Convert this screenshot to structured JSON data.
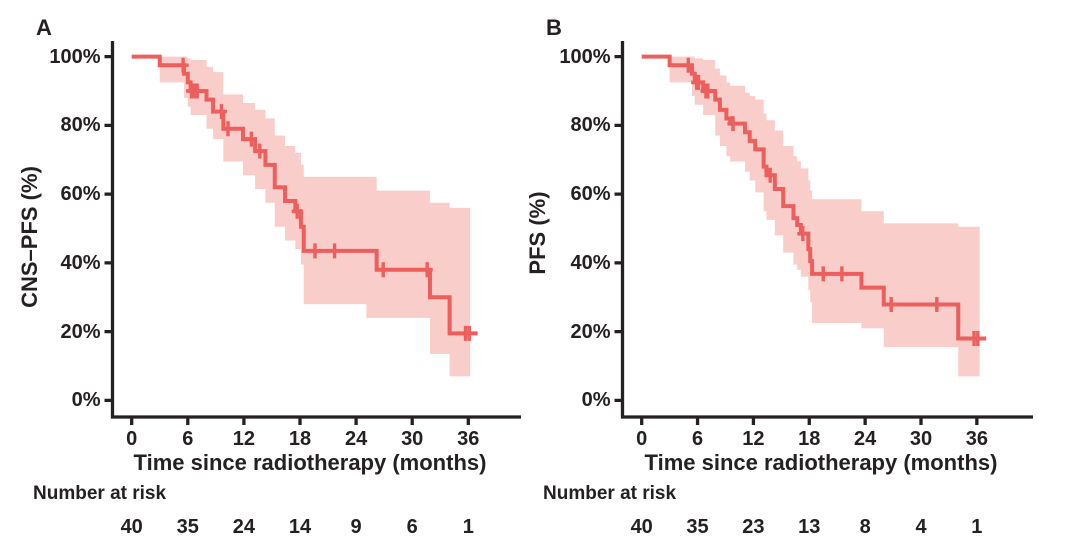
{
  "colors": {
    "curve": "#ec5f5d",
    "band": "#f9cdca",
    "axis": "#252122",
    "text": "#252122",
    "background": "#ffffff"
  },
  "chart_data": [
    {
      "type": "line",
      "subtype": "kaplan-meier-step",
      "panel_label": "A",
      "ylabel": "CNS–PFS (%)",
      "xlabel": "Time since radiotherapy (months)",
      "xlim": [
        0,
        42
      ],
      "ylim": [
        0,
        100
      ],
      "grid": false,
      "legend": "none",
      "xtick_values": [
        0,
        6,
        12,
        18,
        24,
        30,
        36
      ],
      "xtick_labels": [
        "0",
        "6",
        "12",
        "18",
        "24",
        "30",
        "36"
      ],
      "ytick_values": [
        100,
        80,
        60,
        40,
        20,
        0
      ],
      "ytick_labels": [
        "100%",
        "80%",
        "60%",
        "40%",
        "20%",
        "0%"
      ],
      "steps": [
        [
          0,
          100
        ],
        [
          3,
          97.5
        ],
        [
          5.6,
          95
        ],
        [
          6,
          92.5
        ],
        [
          6.3,
          90
        ],
        [
          8,
          87.5
        ],
        [
          8.7,
          84
        ],
        [
          9.8,
          79
        ],
        [
          11.9,
          76
        ],
        [
          13.2,
          72.5
        ],
        [
          14.3,
          68.5
        ],
        [
          15.3,
          62
        ],
        [
          16.4,
          58
        ],
        [
          17.5,
          55
        ],
        [
          18.1,
          50.5
        ],
        [
          18.4,
          43.5
        ],
        [
          26.2,
          38
        ],
        [
          31.9,
          30
        ],
        [
          34,
          19.5
        ]
      ],
      "end_time": 37,
      "censors": [
        [
          5.5,
          97.5
        ],
        [
          6.4,
          90
        ],
        [
          6.6,
          90
        ],
        [
          6.8,
          90
        ],
        [
          7,
          90
        ],
        [
          9.6,
          84
        ],
        [
          10.3,
          79
        ],
        [
          12.8,
          76
        ],
        [
          13.7,
          72.5
        ],
        [
          17.7,
          55
        ],
        [
          19.6,
          43.5
        ],
        [
          21.7,
          43.5
        ],
        [
          26.9,
          38
        ],
        [
          31.6,
          38
        ],
        [
          35.7,
          19.5
        ],
        [
          36.1,
          19.5
        ]
      ],
      "ci": [
        [
          3,
          100,
          92.5
        ],
        [
          5.6,
          100,
          88
        ],
        [
          6,
          99.5,
          85.5
        ],
        [
          6.3,
          99,
          83
        ],
        [
          8,
          97,
          79
        ],
        [
          8.7,
          95.5,
          76
        ],
        [
          9.8,
          89,
          69.5
        ],
        [
          11.9,
          86.5,
          65.5
        ],
        [
          13.2,
          84.5,
          61.5
        ],
        [
          14.3,
          82,
          57.5
        ],
        [
          15.3,
          77,
          50.5
        ],
        [
          16.4,
          74,
          46.5
        ],
        [
          17.5,
          72,
          44
        ],
        [
          18.1,
          68.5,
          39.5
        ],
        [
          18.4,
          65,
          28
        ],
        [
          25.1,
          65,
          24
        ],
        [
          26.2,
          61,
          24
        ],
        [
          31.9,
          57.5,
          13.5
        ],
        [
          34,
          56,
          7
        ]
      ],
      "ci_end_time": 36.2,
      "risk": {
        "label": "Number at risk",
        "times": [
          0,
          6,
          12,
          18,
          24,
          30,
          36
        ],
        "counts": [
          "40",
          "35",
          "24",
          "14",
          "9",
          "6",
          "1"
        ]
      }
    },
    {
      "type": "line",
      "subtype": "kaplan-meier-step",
      "panel_label": "B",
      "ylabel": "PFS (%)",
      "xlabel": "Time since radiotherapy (months)",
      "xlim": [
        0,
        42
      ],
      "ylim": [
        0,
        100
      ],
      "grid": false,
      "legend": "none",
      "xtick_values": [
        0,
        6,
        12,
        18,
        24,
        30,
        36
      ],
      "xtick_labels": [
        "0",
        "6",
        "12",
        "18",
        "24",
        "30",
        "36"
      ],
      "ytick_values": [
        100,
        80,
        60,
        40,
        20,
        0
      ],
      "ytick_labels": [
        "100%",
        "80%",
        "60%",
        "40%",
        "20%",
        "0%"
      ],
      "steps": [
        [
          0,
          100
        ],
        [
          3,
          97.5
        ],
        [
          5.4,
          95
        ],
        [
          5.7,
          92.5
        ],
        [
          6.6,
          90
        ],
        [
          7.9,
          87.5
        ],
        [
          8.4,
          84.5
        ],
        [
          9.1,
          82
        ],
        [
          9.5,
          80.5
        ],
        [
          11.1,
          78
        ],
        [
          11.6,
          75.5
        ],
        [
          12.2,
          73
        ],
        [
          13.1,
          68
        ],
        [
          13.4,
          65.5
        ],
        [
          14.3,
          61.5
        ],
        [
          15.2,
          56.5
        ],
        [
          16.3,
          53
        ],
        [
          16.7,
          51
        ],
        [
          17.1,
          48.5
        ],
        [
          17.9,
          44
        ],
        [
          18.1,
          40.5
        ],
        [
          18.3,
          36.8
        ],
        [
          23.6,
          32.8
        ],
        [
          26,
          27.9
        ],
        [
          34,
          18
        ]
      ],
      "end_time": 37,
      "censors": [
        [
          5,
          97.5
        ],
        [
          5.9,
          92.5
        ],
        [
          6.1,
          92.5
        ],
        [
          6.9,
          90
        ],
        [
          7.1,
          90
        ],
        [
          9.8,
          80.5
        ],
        [
          13.8,
          65.5
        ],
        [
          17.3,
          48.5
        ],
        [
          19.5,
          36.8
        ],
        [
          21.5,
          36.8
        ],
        [
          26.8,
          27.9
        ],
        [
          31.7,
          27.9
        ],
        [
          35.7,
          18
        ],
        [
          36.1,
          18
        ]
      ],
      "ci": [
        [
          3,
          100,
          92.5
        ],
        [
          5.4,
          100,
          88.5
        ],
        [
          5.7,
          99.5,
          86
        ],
        [
          6.6,
          99,
          83
        ],
        [
          7.9,
          96.5,
          77
        ],
        [
          8.4,
          94.5,
          74
        ],
        [
          9.1,
          92.5,
          71
        ],
        [
          9.5,
          91.5,
          69.5
        ],
        [
          11.1,
          89.5,
          66.5
        ],
        [
          11.6,
          88.5,
          64
        ],
        [
          12.2,
          87.5,
          60.5
        ],
        [
          13.1,
          83.5,
          55
        ],
        [
          13.4,
          81.5,
          52.5
        ],
        [
          14.3,
          78.5,
          48
        ],
        [
          15.2,
          74,
          43
        ],
        [
          16.3,
          71,
          39.5
        ],
        [
          16.7,
          69.5,
          38
        ],
        [
          17.1,
          67.5,
          36
        ],
        [
          17.9,
          64,
          32
        ],
        [
          18.1,
          61,
          28.5
        ],
        [
          18.3,
          58.5,
          22.5
        ],
        [
          23.6,
          55,
          21
        ],
        [
          26,
          51.5,
          15.5
        ],
        [
          34,
          50.5,
          7
        ]
      ],
      "ci_end_time": 36.3,
      "risk": {
        "label": "Number at risk",
        "times": [
          0,
          6,
          12,
          18,
          24,
          30,
          36
        ],
        "counts": [
          "40",
          "35",
          "23",
          "13",
          "8",
          "4",
          "1"
        ]
      }
    }
  ]
}
